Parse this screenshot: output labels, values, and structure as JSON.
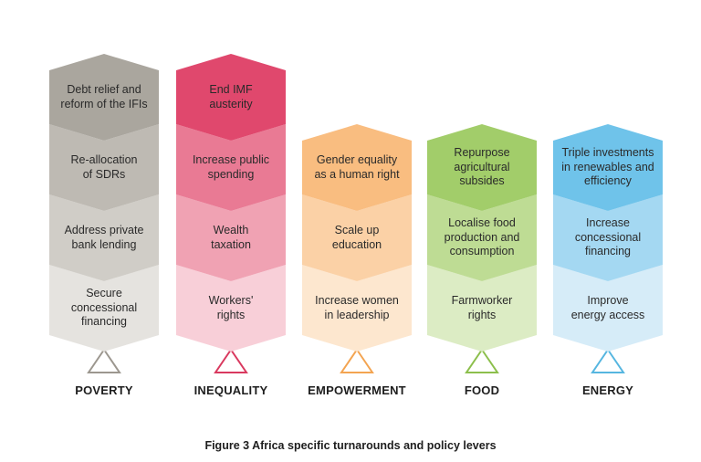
{
  "columns": [
    {
      "id": "poverty",
      "label": "POVERTY",
      "color": "#9c978f",
      "segments": [
        {
          "lines": [
            "Debt relief and",
            "reform of the IFIs"
          ],
          "fill": "#aaa69e",
          "text_color": "#2a2a2a"
        },
        {
          "lines": [
            "Re-allocation",
            "of SDRs"
          ],
          "fill": "#bebab3",
          "text_color": "#2a2a2a"
        },
        {
          "lines": [
            "Address private",
            "bank lending"
          ],
          "fill": "#d0cdc7",
          "text_color": "#2a2a2a"
        },
        {
          "lines": [
            "Secure",
            "concessional",
            "financing"
          ],
          "fill": "#e5e3df",
          "text_color": "#2a2a2a"
        }
      ]
    },
    {
      "id": "inequality",
      "label": "INEQUALITY",
      "color": "#d9395f",
      "segments": [
        {
          "lines": [
            "End IMF",
            "austerity"
          ],
          "fill": "#e0486d",
          "text_color": "#2a2a2a"
        },
        {
          "lines": [
            "Increase public",
            "spending"
          ],
          "fill": "#e97a94",
          "text_color": "#2a2a2a"
        },
        {
          "lines": [
            "Wealth",
            "taxation"
          ],
          "fill": "#f0a2b3",
          "text_color": "#2a2a2a"
        },
        {
          "lines": [
            "Workers'",
            "rights"
          ],
          "fill": "#f8cfd8",
          "text_color": "#2a2a2a"
        }
      ]
    },
    {
      "id": "empowerment",
      "label": "EMPOWERMENT",
      "color": "#f3a451",
      "segments": [
        {
          "lines": [
            "Gender equality",
            "as a human right"
          ],
          "fill": "#f9bd80",
          "text_color": "#2a2a2a"
        },
        {
          "lines": [
            "Scale up",
            "education"
          ],
          "fill": "#fbd1a6",
          "text_color": "#2a2a2a"
        },
        {
          "lines": [
            "Increase women",
            "in leadership"
          ],
          "fill": "#fde7cf",
          "text_color": "#2a2a2a"
        }
      ]
    },
    {
      "id": "food",
      "label": "FOOD",
      "color": "#8cbf4c",
      "segments": [
        {
          "lines": [
            "Repurpose",
            "agricultural",
            "subsides"
          ],
          "fill": "#a2cd6a",
          "text_color": "#2a2a2a"
        },
        {
          "lines": [
            "Localise food",
            "production and",
            "consumption"
          ],
          "fill": "#bedc94",
          "text_color": "#2a2a2a"
        },
        {
          "lines": [
            "Farmworker",
            "rights"
          ],
          "fill": "#dcecc4",
          "text_color": "#2a2a2a"
        }
      ]
    },
    {
      "id": "energy",
      "label": "ENERGY",
      "color": "#56b6e0",
      "segments": [
        {
          "lines": [
            "Triple investments",
            "in renewables and",
            "efficiency"
          ],
          "fill": "#6fc3ea",
          "text_color": "#2a2a2a"
        },
        {
          "lines": [
            "Increase",
            "concessional",
            "financing"
          ],
          "fill": "#a4d8f2",
          "text_color": "#2a2a2a"
        },
        {
          "lines": [
            "Improve",
            "energy access"
          ],
          "fill": "#d6ecf8",
          "text_color": "#2a2a2a"
        }
      ]
    }
  ],
  "caption": "Figure 3 Africa specific turnarounds and policy levers"
}
